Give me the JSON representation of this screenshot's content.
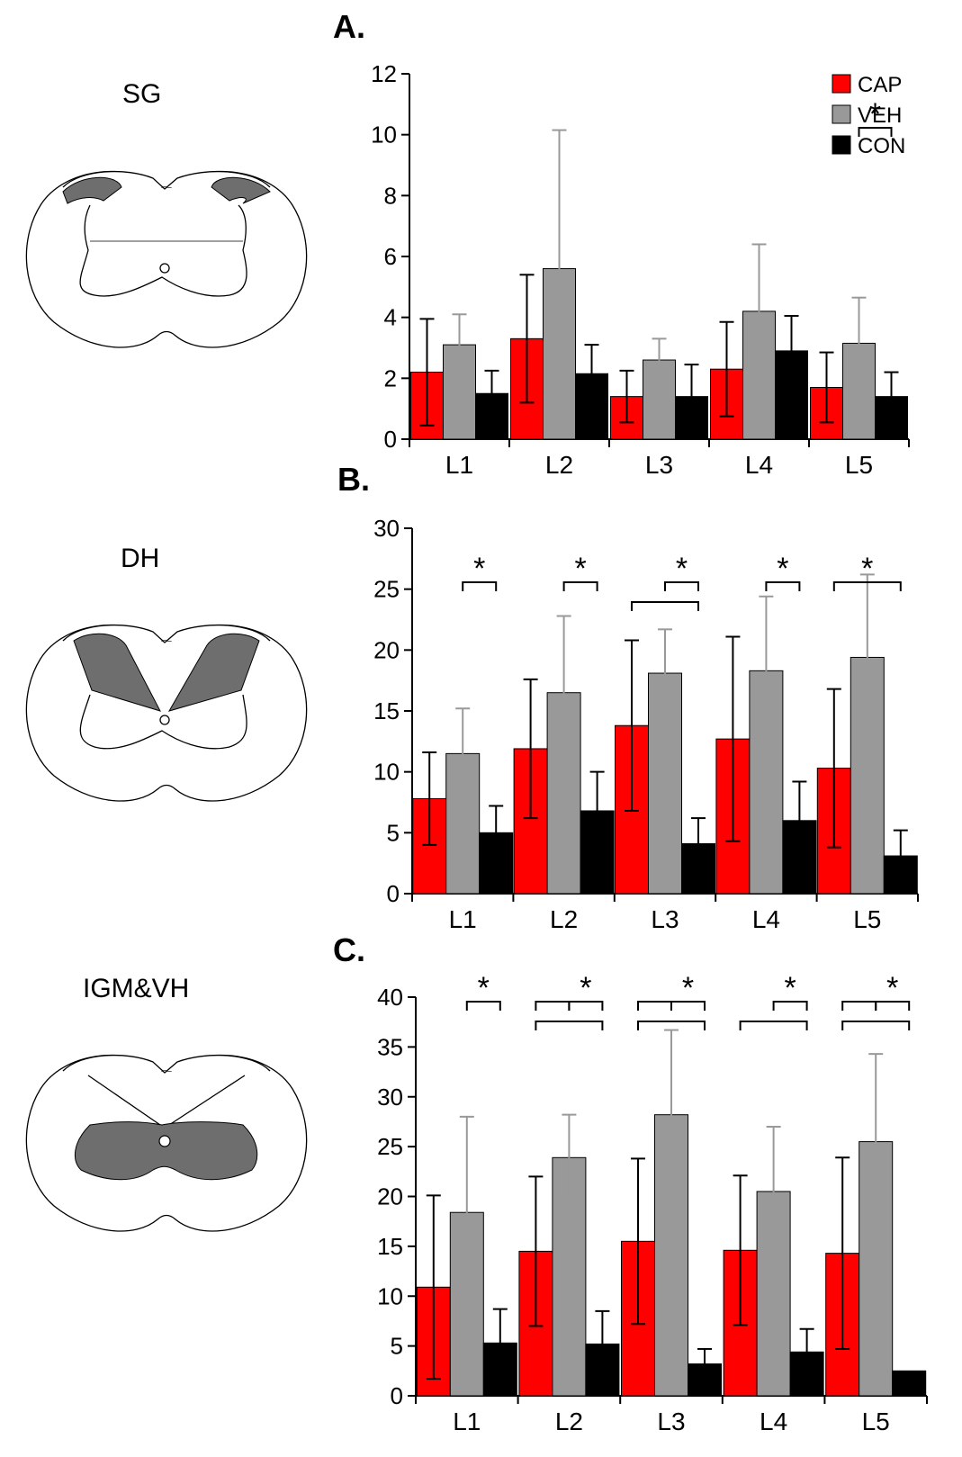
{
  "regions": [
    "SG",
    "DH",
    "IGM&VH"
  ],
  "colors": {
    "CAP": "#ff0000",
    "VEH": "#999999",
    "CON": "#000000",
    "region_fill": "#6e6e6e"
  },
  "chart_data": [
    {
      "type": "bar",
      "panel": "A.",
      "title": "",
      "xlabel": "",
      "ylabel": "",
      "categories": [
        "L1",
        "L2",
        "L3",
        "L4",
        "L5"
      ],
      "ylim": [
        0,
        12
      ],
      "yticks": [
        0,
        2,
        4,
        6,
        8,
        10,
        12
      ],
      "series": [
        {
          "name": "CAP",
          "values": [
            2.2,
            3.3,
            1.4,
            2.3,
            1.7
          ],
          "errors": [
            1.75,
            2.1,
            0.85,
            1.55,
            1.15
          ]
        },
        {
          "name": "VEH",
          "values": [
            3.1,
            5.6,
            2.6,
            4.2,
            3.15
          ],
          "errors": [
            1.0,
            4.55,
            0.7,
            2.2,
            1.5
          ]
        },
        {
          "name": "CON",
          "values": [
            1.5,
            2.15,
            1.4,
            2.9,
            1.4
          ],
          "errors": [
            0.75,
            0.95,
            1.05,
            1.15,
            0.8
          ]
        }
      ],
      "legend": {
        "position": "top-right",
        "entries": [
          "CAP",
          "VEH",
          "CON"
        ]
      },
      "significance": [
        {
          "category": "L5",
          "label": "*",
          "brackets": [
            {
              "from": "VEH",
              "to": "CON",
              "level": 0
            }
          ]
        }
      ]
    },
    {
      "type": "bar",
      "panel": "B.",
      "title": "",
      "xlabel": "",
      "ylabel": "",
      "categories": [
        "L1",
        "L2",
        "L3",
        "L4",
        "L5"
      ],
      "ylim": [
        0,
        30
      ],
      "yticks": [
        0,
        5,
        10,
        15,
        20,
        25,
        30
      ],
      "series": [
        {
          "name": "CAP",
          "values": [
            7.8,
            11.9,
            13.8,
            12.7,
            10.3
          ],
          "errors": [
            3.8,
            5.7,
            7.0,
            8.4,
            6.5
          ]
        },
        {
          "name": "VEH",
          "values": [
            11.5,
            16.5,
            18.1,
            18.3,
            19.4
          ],
          "errors": [
            3.7,
            6.3,
            3.6,
            6.1,
            6.8
          ]
        },
        {
          "name": "CON",
          "values": [
            5.0,
            6.8,
            4.1,
            6.0,
            3.1
          ],
          "errors": [
            2.2,
            3.2,
            2.1,
            3.2,
            2.1
          ]
        }
      ],
      "significance": [
        {
          "category": "L1",
          "label": "*",
          "brackets": [
            {
              "from": "VEH",
              "to": "CON",
              "level": 0
            }
          ]
        },
        {
          "category": "L2",
          "label": "*",
          "brackets": [
            {
              "from": "VEH",
              "to": "CON",
              "level": 0
            }
          ]
        },
        {
          "category": "L3",
          "label": "*",
          "brackets": [
            {
              "from": "VEH",
              "to": "CON",
              "level": 0
            },
            {
              "from": "CAP",
              "to": "CON",
              "level": 1
            }
          ]
        },
        {
          "category": "L4",
          "label": "*",
          "brackets": [
            {
              "from": "VEH",
              "to": "CON",
              "level": 0
            }
          ]
        },
        {
          "category": "L5",
          "label": "*",
          "brackets": [
            {
              "from": "CAP",
              "to": "CON",
              "level": 0
            }
          ]
        }
      ]
    },
    {
      "type": "bar",
      "panel": "C.",
      "title": "",
      "xlabel": "",
      "ylabel": "",
      "categories": [
        "L1",
        "L2",
        "L3",
        "L4",
        "L5"
      ],
      "ylim": [
        0,
        40
      ],
      "yticks": [
        0,
        5,
        10,
        15,
        20,
        25,
        30,
        35,
        40
      ],
      "series": [
        {
          "name": "CAP",
          "values": [
            10.9,
            14.5,
            15.5,
            14.6,
            14.3
          ],
          "errors": [
            9.2,
            7.5,
            8.3,
            7.5,
            9.6
          ]
        },
        {
          "name": "VEH",
          "values": [
            18.4,
            23.9,
            28.2,
            20.5,
            25.5
          ],
          "errors": [
            9.6,
            4.3,
            8.5,
            6.5,
            8.8
          ]
        },
        {
          "name": "CON",
          "values": [
            5.3,
            5.2,
            3.2,
            4.4,
            2.5
          ],
          "errors": [
            3.4,
            3.3,
            1.5,
            2.3,
            0.0
          ]
        }
      ],
      "significance": [
        {
          "category": "L1",
          "label": "*",
          "brackets": [
            {
              "from": "VEH",
              "to": "CON",
              "level": 0
            }
          ]
        },
        {
          "category": "L2",
          "label": "*",
          "brackets": [
            {
              "from": "VEH",
              "to": "CON",
              "level": 0
            },
            {
              "from": "CAP",
              "to": "VEH",
              "level": 0
            },
            {
              "from": "CAP",
              "to": "CON",
              "level": 1
            }
          ]
        },
        {
          "category": "L3",
          "label": "*",
          "brackets": [
            {
              "from": "VEH",
              "to": "CON",
              "level": 0
            },
            {
              "from": "CAP",
              "to": "VEH",
              "level": 0
            },
            {
              "from": "CAP",
              "to": "CON",
              "level": 1
            }
          ]
        },
        {
          "category": "L4",
          "label": "*",
          "brackets": [
            {
              "from": "VEH",
              "to": "CON",
              "level": 0
            },
            {
              "from": "CAP",
              "to": "CON",
              "level": 1
            }
          ]
        },
        {
          "category": "L5",
          "label": "*",
          "brackets": [
            {
              "from": "VEH",
              "to": "CON",
              "level": 0
            },
            {
              "from": "CAP",
              "to": "VEH",
              "level": 0
            },
            {
              "from": "CAP",
              "to": "CON",
              "level": 1
            }
          ]
        }
      ]
    }
  ]
}
